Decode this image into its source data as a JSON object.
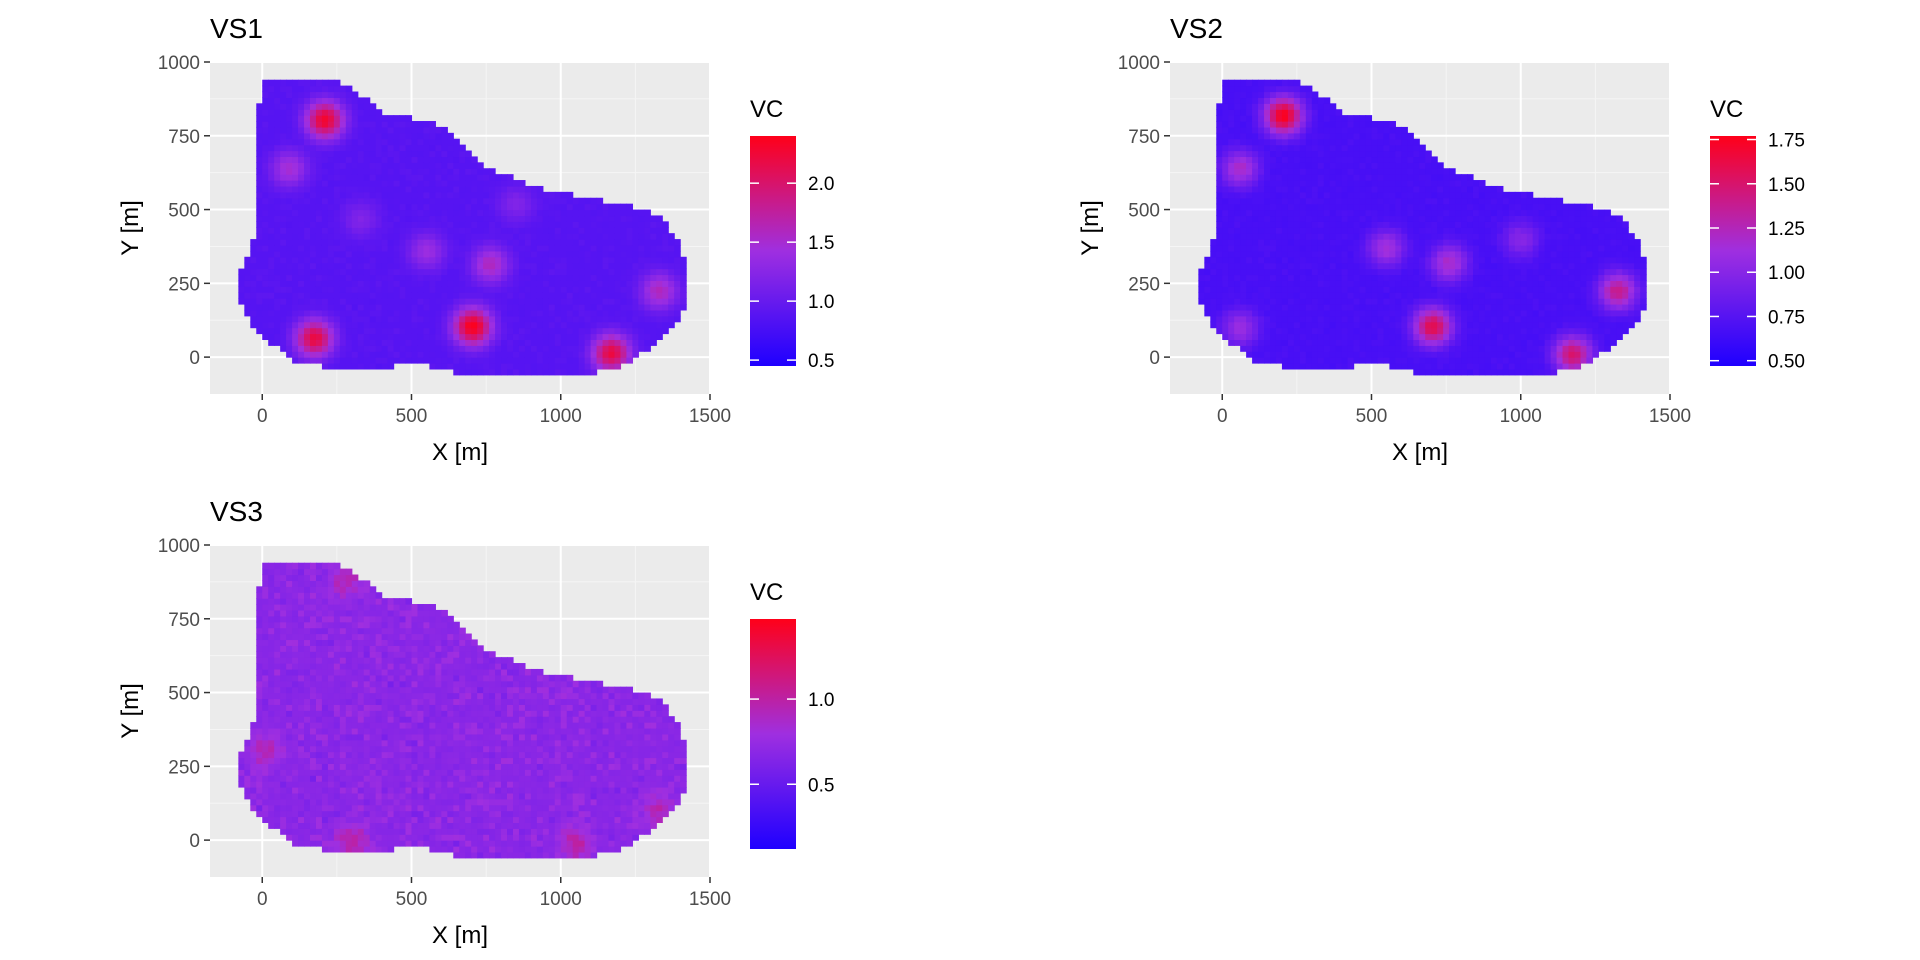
{
  "chart_data": [
    {
      "type": "heatmap",
      "title": "VS1",
      "xlabel": "X [m]",
      "ylabel": "Y [m]",
      "xlim": [
        -175,
        1500
      ],
      "ylim": [
        -125,
        1000
      ],
      "x_ticks": [
        0,
        500,
        1000,
        1500
      ],
      "y_ticks": [
        0,
        250,
        500,
        750,
        1000
      ],
      "grid": true,
      "legend": {
        "title": "VC",
        "position": "right",
        "range": [
          0.45,
          2.4
        ],
        "ticks": [
          "0.5",
          "1.0",
          "1.5",
          "2.0"
        ],
        "colors": {
          "low": "#1f00ff",
          "mid": "#9f2fe0",
          "high": "#ff0019"
        }
      },
      "hotspots": [
        {
          "x": 210,
          "y": 805,
          "value": 2.3
        },
        {
          "x": 90,
          "y": 640,
          "value": 1.5
        },
        {
          "x": 175,
          "y": 65,
          "value": 2.2
        },
        {
          "x": 705,
          "y": 105,
          "value": 2.4
        },
        {
          "x": 1170,
          "y": 15,
          "value": 2.2
        },
        {
          "x": 550,
          "y": 360,
          "value": 1.4
        },
        {
          "x": 765,
          "y": 315,
          "value": 1.6
        },
        {
          "x": 1330,
          "y": 225,
          "value": 1.6
        },
        {
          "x": 330,
          "y": 470,
          "value": 1.2
        },
        {
          "x": 850,
          "y": 520,
          "value": 1.2
        }
      ]
    },
    {
      "type": "heatmap",
      "title": "VS2",
      "xlabel": "X [m]",
      "ylabel": "Y [m]",
      "xlim": [
        -175,
        1500
      ],
      "ylim": [
        -125,
        1000
      ],
      "x_ticks": [
        0,
        500,
        1000,
        1500
      ],
      "y_ticks": [
        0,
        250,
        500,
        750,
        1000
      ],
      "grid": true,
      "legend": {
        "title": "VC",
        "position": "right",
        "range": [
          0.47,
          1.77
        ],
        "ticks": [
          "0.50",
          "0.75",
          "1.00",
          "1.25",
          "1.50",
          "1.75"
        ],
        "colors": {
          "low": "#1f00ff",
          "mid": "#9f2fe0",
          "high": "#ff0019"
        }
      },
      "hotspots": [
        {
          "x": 205,
          "y": 820,
          "value": 1.75
        },
        {
          "x": 60,
          "y": 640,
          "value": 1.2
        },
        {
          "x": 705,
          "y": 105,
          "value": 1.6
        },
        {
          "x": 1175,
          "y": 10,
          "value": 1.5
        },
        {
          "x": 1325,
          "y": 225,
          "value": 1.4
        },
        {
          "x": 550,
          "y": 370,
          "value": 1.15
        },
        {
          "x": 760,
          "y": 320,
          "value": 1.2
        },
        {
          "x": 60,
          "y": 100,
          "value": 1.1
        },
        {
          "x": 1000,
          "y": 400,
          "value": 1.0
        }
      ]
    },
    {
      "type": "heatmap",
      "title": "VS3",
      "xlabel": "X [m]",
      "ylabel": "Y [m]",
      "xlim": [
        -175,
        1500
      ],
      "ylim": [
        -125,
        1000
      ],
      "x_ticks": [
        0,
        500,
        1000,
        1500
      ],
      "y_ticks": [
        0,
        250,
        500,
        750,
        1000
      ],
      "grid": true,
      "legend": {
        "title": "VC",
        "position": "right",
        "range": [
          0.12,
          1.47
        ],
        "ticks": [
          "0.5",
          "1.0"
        ],
        "colors": {
          "low": "#1f00ff",
          "mid": "#9f2fe0",
          "high": "#ff0019"
        }
      },
      "hotspots": [
        {
          "x": 300,
          "y": 0,
          "value": 1.0
        },
        {
          "x": 1050,
          "y": -10,
          "value": 1.0
        },
        {
          "x": 280,
          "y": 880,
          "value": 0.95
        },
        {
          "x": 10,
          "y": 300,
          "value": 0.95
        },
        {
          "x": 1330,
          "y": 100,
          "value": 0.95
        }
      ]
    }
  ]
}
